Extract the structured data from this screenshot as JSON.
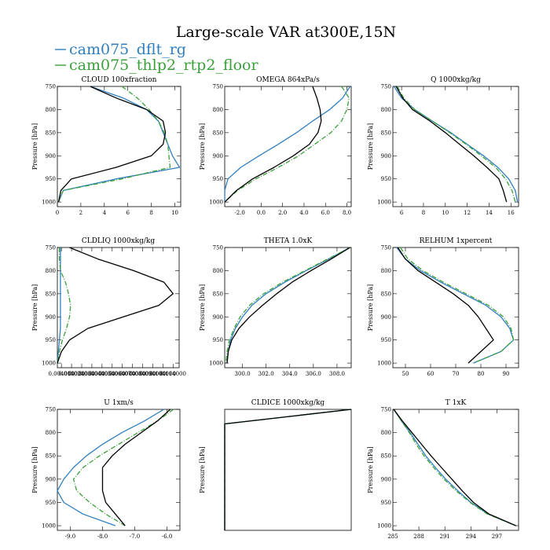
{
  "figure": {
    "title": "Large-scale VAR at300E,15N",
    "legend": [
      {
        "name": "cam075_dflt_rg",
        "color": "#2f7fbf"
      },
      {
        "name": "cam075_thlp2_rtp2_floor",
        "color": "#3aa03a"
      }
    ],
    "ref_color": "#000000"
  },
  "chart_data": [
    {
      "type": "line",
      "title": "CLOUD  100xfraction",
      "ylabel": "Pressure [hPa]",
      "xlim": [
        0,
        10.5
      ],
      "ylim": [
        1010,
        750
      ],
      "xticks": [
        0,
        2,
        4,
        6,
        8,
        10
      ],
      "xtick_labels": [
        "0",
        "2",
        "4",
        "6",
        "8",
        "10"
      ],
      "yticks": [
        750,
        800,
        850,
        900,
        950,
        1000
      ],
      "ytick_labels": [
        "750",
        "800",
        "850",
        "900",
        "950",
        "1000"
      ],
      "y": [
        750,
        775,
        800,
        825,
        850,
        875,
        900,
        925,
        950,
        975,
        1000
      ],
      "series": [
        {
          "x": [
            2.8,
            5.6,
            7.6,
            8.6,
            9.0,
            9.4,
            9.8,
            10.4,
            5.0,
            0.5,
            0.1
          ],
          "color": "#2f7fbf",
          "dash": ""
        },
        {
          "x": [
            5.5,
            6.8,
            7.8,
            8.6,
            9.1,
            9.4,
            9.5,
            9.6,
            5.5,
            0.5,
            0.1
          ],
          "color": "#3aa03a",
          "dash": "6,2,1,2"
        },
        {
          "x": [
            2.8,
            5.0,
            7.6,
            9.0,
            9.2,
            9.0,
            8.0,
            5.0,
            1.2,
            0.3,
            0.1
          ],
          "color": "#000000",
          "dash": ""
        }
      ]
    },
    {
      "type": "line",
      "title": "OMEGA  864xPa/s",
      "ylabel": "Pressure [hPa]",
      "xlim": [
        -3.4,
        8.4
      ],
      "ylim": [
        1010,
        750
      ],
      "xticks": [
        -2,
        0,
        2,
        4,
        6,
        8
      ],
      "xtick_labels": [
        "-2.0",
        "0.0",
        "2.0",
        "4.0",
        "6.0",
        "8.0"
      ],
      "yticks": [
        750,
        800,
        850,
        900,
        950,
        1000
      ],
      "ytick_labels": [
        "750",
        "800",
        "850",
        "900",
        "950",
        "1000"
      ],
      "y": [
        750,
        775,
        800,
        825,
        850,
        875,
        900,
        925,
        950,
        975,
        1000
      ],
      "series": [
        {
          "x": [
            8.3,
            7.6,
            6.4,
            4.8,
            3.3,
            1.6,
            -0.2,
            -1.9,
            -3.1,
            -3.4,
            -3.4
          ],
          "color": "#2f7fbf",
          "dash": ""
        },
        {
          "x": [
            7.5,
            8.2,
            8.0,
            7.5,
            6.5,
            5.0,
            3.5,
            1.6,
            -0.5,
            -2.2,
            -3.4
          ],
          "color": "#3aa03a",
          "dash": "6,2,1,2"
        },
        {
          "x": [
            4.8,
            5.2,
            5.5,
            5.6,
            5.3,
            4.5,
            3.0,
            1.2,
            -0.8,
            -2.3,
            -3.4
          ],
          "color": "#000000",
          "dash": ""
        }
      ]
    },
    {
      "type": "line",
      "title": "Q  1000xkg/kg",
      "ylabel": "Pressure [hPa]",
      "xlim": [
        5.2,
        16.7
      ],
      "ylim": [
        1010,
        750
      ],
      "xticks": [
        6,
        8,
        10,
        12,
        14,
        16
      ],
      "xtick_labels": [
        "6",
        "8",
        "10",
        "12",
        "14",
        "16"
      ],
      "yticks": [
        750,
        800,
        850,
        900,
        950,
        1000
      ],
      "ytick_labels": [
        "750",
        "800",
        "850",
        "900",
        "950",
        "1000"
      ],
      "y": [
        750,
        775,
        800,
        825,
        850,
        875,
        900,
        925,
        950,
        975,
        1000
      ],
      "series": [
        {
          "x": [
            5.3,
            6.0,
            7.2,
            8.8,
            10.5,
            12.0,
            13.5,
            14.8,
            15.8,
            16.4,
            16.6
          ],
          "color": "#2f7fbf",
          "dash": ""
        },
        {
          "x": [
            5.6,
            6.2,
            7.2,
            8.8,
            10.4,
            11.9,
            13.3,
            14.6,
            15.5,
            16.1,
            16.4
          ],
          "color": "#3aa03a",
          "dash": "6,2,1,2"
        },
        {
          "x": [
            5.5,
            6.1,
            7.0,
            8.6,
            10.0,
            11.3,
            12.6,
            13.8,
            14.9,
            15.3,
            15.6
          ],
          "color": "#000000",
          "dash": ""
        }
      ]
    },
    {
      "type": "line",
      "title": "CLDLIQ  1000xkg/kg",
      "ylabel": "Pressure [hPa]",
      "xlim": [
        0,
        0.12
      ],
      "ylim": [
        1010,
        750
      ],
      "xticks": [
        0.004,
        0.014,
        0.024,
        0.034,
        0.044,
        0.054,
        0.064,
        0.074,
        0.084,
        0.094,
        0.104,
        0.114
      ],
      "xtick_labels": [
        "0.004000",
        "0.014000",
        "0.024000",
        "0.034000",
        "0.044000",
        "0.054000",
        "0.064000",
        "0.074000",
        "0.084000",
        "0.094000",
        "0.104000",
        "0.114000"
      ],
      "yticks": [
        750,
        800,
        850,
        900,
        950,
        1000
      ],
      "ytick_labels": [
        "750",
        "800",
        "850",
        "900",
        "950",
        "1000"
      ],
      "y": [
        750,
        775,
        800,
        825,
        850,
        875,
        900,
        925,
        950,
        975,
        1000
      ],
      "series": [
        {
          "x": [
            0.003,
            0.003,
            0.003,
            0.003,
            0.003,
            0.003,
            0.003,
            0.003,
            0.002,
            0.001,
            0.0
          ],
          "color": "#2f7fbf",
          "dash": ""
        },
        {
          "x": [
            0.002,
            0.002,
            0.003,
            0.008,
            0.011,
            0.013,
            0.012,
            0.009,
            0.005,
            0.002,
            0.0
          ],
          "color": "#3aa03a",
          "dash": "6,2,1,2"
        },
        {
          "x": [
            0.012,
            0.04,
            0.075,
            0.105,
            0.114,
            0.1,
            0.065,
            0.03,
            0.012,
            0.004,
            0.0
          ],
          "color": "#000000",
          "dash": ""
        }
      ]
    },
    {
      "type": "line",
      "title": "THETA  1.0xK",
      "ylabel": "Pressure [hPa]",
      "xlim": [
        298.5,
        309.2
      ],
      "ylim": [
        1010,
        750
      ],
      "xticks": [
        300,
        302,
        304,
        306,
        308
      ],
      "xtick_labels": [
        "300.0",
        "302.0",
        "304.0",
        "306.0",
        "308.0"
      ],
      "yticks": [
        750,
        800,
        850,
        900,
        950,
        1000
      ],
      "ytick_labels": [
        "750",
        "800",
        "850",
        "900",
        "950",
        "1000"
      ],
      "y": [
        750,
        775,
        800,
        825,
        850,
        875,
        900,
        925,
        950,
        975,
        1000
      ],
      "series": [
        {
          "x": [
            309.1,
            307.3,
            305.4,
            303.6,
            302.0,
            300.8,
            300.0,
            299.4,
            299.0,
            298.8,
            298.7
          ],
          "color": "#2f7fbf",
          "dash": ""
        },
        {
          "x": [
            309.1,
            307.2,
            305.3,
            303.4,
            301.8,
            300.6,
            299.8,
            299.3,
            298.9,
            298.7,
            298.6
          ],
          "color": "#3aa03a",
          "dash": "6,2,1,2"
        },
        {
          "x": [
            309.1,
            307.5,
            305.8,
            304.2,
            302.9,
            301.7,
            300.6,
            299.7,
            299.1,
            298.8,
            298.7
          ],
          "color": "#000000",
          "dash": ""
        }
      ]
    },
    {
      "type": "line",
      "title": "RELHUM  1xpercent",
      "ylabel": "Pressure [hPa]",
      "xlim": [
        45,
        95
      ],
      "ylim": [
        1010,
        750
      ],
      "xticks": [
        50,
        60,
        70,
        80,
        90
      ],
      "xtick_labels": [
        "50",
        "60",
        "70",
        "80",
        "90"
      ],
      "yticks": [
        750,
        800,
        850,
        900,
        950,
        1000
      ],
      "ytick_labels": [
        "750",
        "800",
        "850",
        "900",
        "950",
        "1000"
      ],
      "y": [
        750,
        775,
        800,
        825,
        850,
        875,
        900,
        925,
        950,
        975,
        1000
      ],
      "series": [
        {
          "x": [
            46.5,
            50,
            56,
            64,
            73,
            82,
            88,
            91.5,
            93,
            88,
            77
          ],
          "color": "#2f7fbf",
          "dash": ""
        },
        {
          "x": [
            48,
            51,
            57,
            65,
            74,
            83,
            89,
            92,
            93,
            88,
            77
          ],
          "color": "#3aa03a",
          "dash": "6,2,1,2"
        },
        {
          "x": [
            47,
            50,
            55,
            62,
            69,
            75,
            79,
            82,
            85,
            80,
            75
          ],
          "color": "#000000",
          "dash": ""
        }
      ]
    },
    {
      "type": "line",
      "title": "U  1xm/s",
      "ylabel": "Pressure [hPa]",
      "xlim": [
        -9.4,
        -5.6
      ],
      "ylim": [
        1010,
        750
      ],
      "xticks": [
        -9,
        -8,
        -7,
        -6
      ],
      "xtick_labels": [
        "-9.0",
        "-8.0",
        "-7.0",
        "-6.0"
      ],
      "yticks": [
        750,
        800,
        850,
        900,
        950,
        1000
      ],
      "ytick_labels": [
        "750",
        "800",
        "850",
        "900",
        "950",
        "1000"
      ],
      "y": [
        750,
        775,
        800,
        825,
        850,
        875,
        900,
        925,
        950,
        975,
        1000
      ],
      "series": [
        {
          "x": [
            -6.1,
            -6.7,
            -7.4,
            -8.0,
            -8.5,
            -8.9,
            -9.2,
            -9.4,
            -9.2,
            -8.6,
            -7.6
          ],
          "color": "#2f7fbf",
          "dash": ""
        },
        {
          "x": [
            -5.8,
            -6.3,
            -6.9,
            -7.5,
            -8.1,
            -8.6,
            -8.9,
            -8.8,
            -8.4,
            -7.9,
            -7.3
          ],
          "color": "#3aa03a",
          "dash": "6,2,1,2"
        },
        {
          "x": [
            -5.9,
            -6.3,
            -6.8,
            -7.3,
            -7.7,
            -8.0,
            -8.0,
            -8.0,
            -7.9,
            -7.6,
            -7.3
          ],
          "color": "#000000",
          "dash": ""
        }
      ]
    },
    {
      "type": "line",
      "title": "CLDICE  1000xkg/kg",
      "ylabel": "Pressure [hPa]",
      "xlim": [
        0,
        1
      ],
      "ylim": [
        1000,
        750
      ],
      "xticks": [],
      "xtick_labels": [],
      "yticks": [],
      "ytick_labels": [],
      "y": [
        750,
        780,
        1000
      ],
      "series": [
        {
          "x": [
            1.0,
            0.0,
            0.0
          ],
          "color": "#2f7fbf",
          "dash": ""
        },
        {
          "x": [
            1.0,
            0.0,
            0.0
          ],
          "color": "#3aa03a",
          "dash": "6,2,1,2"
        },
        {
          "x": [
            1.0,
            0.0,
            0.0
          ],
          "color": "#000000",
          "dash": ""
        }
      ]
    },
    {
      "type": "line",
      "title": "T  1xK",
      "ylabel": "Pressure [hPa]",
      "xlim": [
        285,
        299.5
      ],
      "ylim": [
        1010,
        750
      ],
      "xticks": [
        285,
        288,
        291,
        294,
        297
      ],
      "xtick_labels": [
        "285",
        "288",
        "291",
        "294",
        "297"
      ],
      "yticks": [
        750,
        800,
        850,
        900,
        950,
        1000
      ],
      "ytick_labels": [
        "750",
        "800",
        "850",
        "900",
        "950",
        "1000"
      ],
      "y": [
        750,
        775,
        800,
        825,
        850,
        875,
        900,
        925,
        950,
        975,
        1000
      ],
      "series": [
        {
          "x": [
            285.1,
            286.0,
            287.0,
            287.9,
            288.8,
            289.9,
            291.1,
            292.5,
            294.0,
            296.0,
            299.2
          ],
          "color": "#2f7fbf",
          "dash": ""
        },
        {
          "x": [
            285.1,
            286.0,
            286.9,
            287.7,
            288.6,
            289.7,
            290.9,
            292.3,
            293.9,
            295.9,
            299.2
          ],
          "color": "#3aa03a",
          "dash": "6,2,1,2"
        },
        {
          "x": [
            285.1,
            286.1,
            287.2,
            288.3,
            289.4,
            290.6,
            291.8,
            293.0,
            294.3,
            296.1,
            299.2
          ],
          "color": "#000000",
          "dash": ""
        }
      ]
    }
  ]
}
